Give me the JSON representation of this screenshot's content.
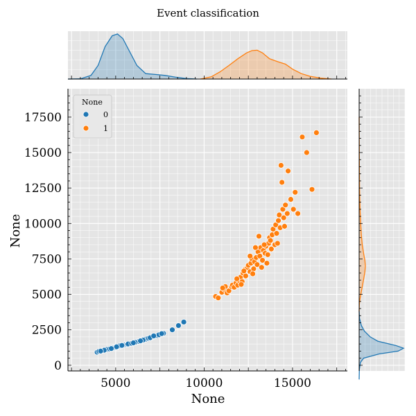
{
  "chart_data": {
    "type": "scatter",
    "title": "Event classification",
    "xlabel": "None",
    "ylabel": "None",
    "xlim": [
      2300,
      18100
    ],
    "ylim": [
      -400,
      19500
    ],
    "xticks": [
      5000,
      10000,
      15000
    ],
    "yticks": [
      0,
      2500,
      5000,
      7500,
      10000,
      12500,
      15000,
      17500
    ],
    "grid": true,
    "legend": {
      "title": "None",
      "placement": "top-left",
      "entries": [
        "0",
        "1"
      ]
    },
    "series": [
      {
        "name": "0",
        "color": "#1f77b4",
        "points": [
          [
            3950,
            920
          ],
          [
            4050,
            980
          ],
          [
            4200,
            1020
          ],
          [
            4300,
            1050
          ],
          [
            4400,
            1080
          ],
          [
            4500,
            1120
          ],
          [
            4650,
            1150
          ],
          [
            4800,
            1200
          ],
          [
            4900,
            1230
          ],
          [
            5000,
            1260
          ],
          [
            5100,
            1290
          ],
          [
            5200,
            1320
          ],
          [
            5300,
            1350
          ],
          [
            5450,
            1420
          ],
          [
            5550,
            1450
          ],
          [
            5650,
            1470
          ],
          [
            5800,
            1520
          ],
          [
            5950,
            1560
          ],
          [
            6050,
            1600
          ],
          [
            6200,
            1650
          ],
          [
            6300,
            1680
          ],
          [
            6450,
            1740
          ],
          [
            6600,
            1800
          ],
          [
            6700,
            1840
          ],
          [
            6850,
            1900
          ],
          [
            7000,
            1960
          ],
          [
            7200,
            2050
          ],
          [
            7350,
            2100
          ],
          [
            7500,
            2180
          ],
          [
            7700,
            2250
          ],
          [
            8200,
            2500
          ],
          [
            8550,
            2800
          ],
          [
            8850,
            3050
          ],
          [
            5250,
            1380
          ],
          [
            5700,
            1500
          ],
          [
            6100,
            1620
          ],
          [
            6550,
            1780
          ],
          [
            7050,
            2000
          ],
          [
            7450,
            2150
          ],
          [
            4350,
            1060
          ],
          [
            4750,
            1180
          ],
          [
            5350,
            1400
          ],
          [
            5900,
            1540
          ],
          [
            6400,
            1720
          ],
          [
            6950,
            1940
          ],
          [
            7600,
            2230
          ],
          [
            4150,
            1000
          ],
          [
            5050,
            1300
          ],
          [
            6000,
            1580
          ],
          [
            7150,
            2070
          ]
        ]
      },
      {
        "name": "1",
        "color": "#ff7f0e",
        "points": [
          [
            10650,
            4850
          ],
          [
            10800,
            4750
          ],
          [
            11000,
            5150
          ],
          [
            11150,
            5350
          ],
          [
            11300,
            5100
          ],
          [
            11400,
            5250
          ],
          [
            11550,
            5550
          ],
          [
            11600,
            5650
          ],
          [
            11700,
            5500
          ],
          [
            11800,
            5800
          ],
          [
            11900,
            5650
          ],
          [
            12000,
            5950
          ],
          [
            12050,
            6200
          ],
          [
            12150,
            5900
          ],
          [
            12200,
            6500
          ],
          [
            12300,
            6750
          ],
          [
            12350,
            6300
          ],
          [
            12450,
            6900
          ],
          [
            12500,
            7050
          ],
          [
            12600,
            6600
          ],
          [
            12650,
            7200
          ],
          [
            12700,
            7500
          ],
          [
            12800,
            6800
          ],
          [
            12850,
            7300
          ],
          [
            12950,
            7600
          ],
          [
            13000,
            7100
          ],
          [
            13050,
            8000
          ],
          [
            13150,
            7700
          ],
          [
            13200,
            8300
          ],
          [
            13300,
            7400
          ],
          [
            13350,
            8100
          ],
          [
            13450,
            7900
          ],
          [
            13500,
            8400
          ],
          [
            13600,
            7800
          ],
          [
            13650,
            8600
          ],
          [
            13700,
            9000
          ],
          [
            13800,
            8200
          ],
          [
            13850,
            9200
          ],
          [
            13900,
            9600
          ],
          [
            14000,
            8500
          ],
          [
            14050,
            9900
          ],
          [
            14100,
            9300
          ],
          [
            14200,
            10200
          ],
          [
            14250,
            10600
          ],
          [
            14300,
            9700
          ],
          [
            14350,
            14100
          ],
          [
            14400,
            12900
          ],
          [
            14450,
            11000
          ],
          [
            14500,
            10400
          ],
          [
            14600,
            11300
          ],
          [
            14700,
            10700
          ],
          [
            14750,
            13700
          ],
          [
            14900,
            11700
          ],
          [
            15050,
            11000
          ],
          [
            15150,
            12200
          ],
          [
            15300,
            10700
          ],
          [
            15550,
            16100
          ],
          [
            15800,
            15000
          ],
          [
            16100,
            12400
          ],
          [
            16350,
            16400
          ],
          [
            12600,
            7700
          ],
          [
            13250,
            6900
          ],
          [
            12900,
            8300
          ],
          [
            13550,
            7200
          ],
          [
            11200,
            5550
          ],
          [
            12250,
            6650
          ],
          [
            13750,
            8800
          ],
          [
            14150,
            8600
          ],
          [
            11850,
            6100
          ],
          [
            12750,
            6450
          ],
          [
            13400,
            8500
          ],
          [
            14550,
            9800
          ],
          [
            13100,
            9100
          ],
          [
            12100,
            5700
          ],
          [
            11050,
            5450
          ]
        ]
      }
    ],
    "marginal_density": {
      "x": [
        {
          "name": "0",
          "curve": [
            [
              2300,
              0
            ],
            [
              3000,
              0.005
            ],
            [
              3600,
              0.08
            ],
            [
              4000,
              0.3
            ],
            [
              4400,
              0.72
            ],
            [
              4800,
              0.96
            ],
            [
              5100,
              1.0
            ],
            [
              5400,
              0.9
            ],
            [
              5800,
              0.6
            ],
            [
              6200,
              0.3
            ],
            [
              6700,
              0.12
            ],
            [
              7300,
              0.1
            ],
            [
              7800,
              0.08
            ],
            [
              8400,
              0.04
            ],
            [
              9000,
              0.01
            ],
            [
              9600,
              0
            ]
          ]
        },
        {
          "name": "1",
          "curve": [
            [
              9800,
              0
            ],
            [
              10400,
              0.05
            ],
            [
              10900,
              0.16
            ],
            [
              11400,
              0.3
            ],
            [
              11900,
              0.45
            ],
            [
              12400,
              0.58
            ],
            [
              12700,
              0.63
            ],
            [
              13000,
              0.64
            ],
            [
              13300,
              0.58
            ],
            [
              13700,
              0.45
            ],
            [
              14200,
              0.38
            ],
            [
              14600,
              0.33
            ],
            [
              15000,
              0.22
            ],
            [
              15500,
              0.12
            ],
            [
              16000,
              0.06
            ],
            [
              16600,
              0.02
            ],
            [
              17200,
              0
            ]
          ]
        }
      ],
      "y": [
        {
          "name": "0",
          "curve": [
            [
              -1000,
              0
            ],
            [
              -300,
              0.005
            ],
            [
              200,
              0.03
            ],
            [
              500,
              0.1
            ],
            [
              800,
              0.45
            ],
            [
              1000,
              0.88
            ],
            [
              1200,
              1.0
            ],
            [
              1400,
              0.82
            ],
            [
              1700,
              0.42
            ],
            [
              2000,
              0.25
            ],
            [
              2400,
              0.12
            ],
            [
              2800,
              0.05
            ],
            [
              3300,
              0.01
            ],
            [
              3800,
              0
            ]
          ]
        },
        {
          "name": "1",
          "curve": [
            [
              3800,
              0
            ],
            [
              4300,
              0.005
            ],
            [
              4700,
              0.02
            ],
            [
              5200,
              0.05
            ],
            [
              5700,
              0.08
            ],
            [
              6200,
              0.11
            ],
            [
              6600,
              0.13
            ],
            [
              7000,
              0.14
            ],
            [
              7400,
              0.13
            ],
            [
              7900,
              0.1
            ],
            [
              8500,
              0.07
            ],
            [
              9200,
              0.05
            ],
            [
              10000,
              0.035
            ],
            [
              11000,
              0.02
            ],
            [
              12500,
              0.01
            ],
            [
              14500,
              0.005
            ],
            [
              17500,
              0
            ]
          ]
        }
      ]
    }
  }
}
